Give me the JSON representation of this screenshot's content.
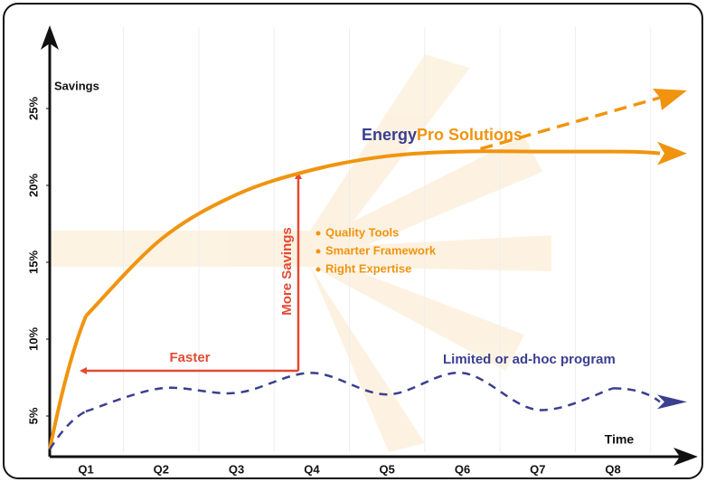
{
  "chart_data": {
    "type": "line",
    "x_label": "Time",
    "y_label": "Savings",
    "categories": [
      "Q1",
      "Q2",
      "Q3",
      "Q4",
      "Q5",
      "Q6",
      "Q7",
      "Q8"
    ],
    "ylim": [
      2.5,
      29.5
    ],
    "yticks": [
      {
        "value": 5,
        "label": "5%"
      },
      {
        "value": 10,
        "label": "10%"
      },
      {
        "value": 15,
        "label": "15%"
      },
      {
        "value": 20,
        "label": "20%"
      },
      {
        "value": 25,
        "label": "25%"
      }
    ],
    "series": [
      {
        "color": "#f0940f",
        "dashed": false,
        "values": [
          11.5,
          16.5,
          19.4,
          21.0,
          21.9,
          22.2,
          22.2,
          22.2
        ]
      },
      {
        "color": "#3a3f8f",
        "dashed": true,
        "values": [
          5.3,
          6.8,
          6.5,
          7.8,
          6.4,
          7.8,
          5.4,
          6.8
        ]
      }
    ],
    "annotations": {
      "solution_parts": [
        "Energy",
        "Pro Solutions"
      ],
      "limited": "Limited or ad-hoc program",
      "more_savings": "More Savings",
      "faster": "Faster",
      "bullets": [
        "Quality Tools",
        "Smarter Framework",
        "Right Expertise"
      ]
    }
  }
}
